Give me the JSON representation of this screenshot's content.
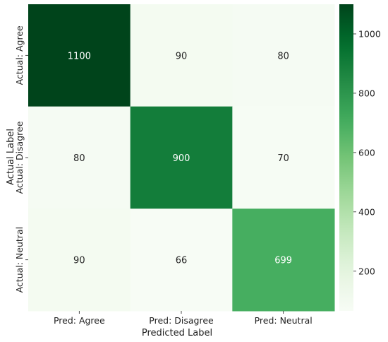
{
  "chart_data": {
    "type": "heatmap",
    "title": "",
    "xlabel": "Predicted Label",
    "ylabel": "Actual Label",
    "x_categories": [
      "Pred: Agree",
      "Pred: Disagree",
      "Pred: Neutral"
    ],
    "y_categories": [
      "Actual: Agree",
      "Actual: Disagree",
      "Actual: Neutral"
    ],
    "values": [
      [
        1100,
        90,
        80
      ],
      [
        80,
        900,
        70
      ],
      [
        90,
        66,
        699
      ]
    ],
    "colormap": "Greens",
    "colorbar": {
      "vmin": 66,
      "vmax": 1100,
      "ticks": [
        200,
        400,
        600,
        800,
        1000
      ]
    },
    "colors": {
      "low": "#f7fcf5",
      "high": "#00441b",
      "text_light": "#ffffff",
      "text_dark": "#262626"
    }
  }
}
